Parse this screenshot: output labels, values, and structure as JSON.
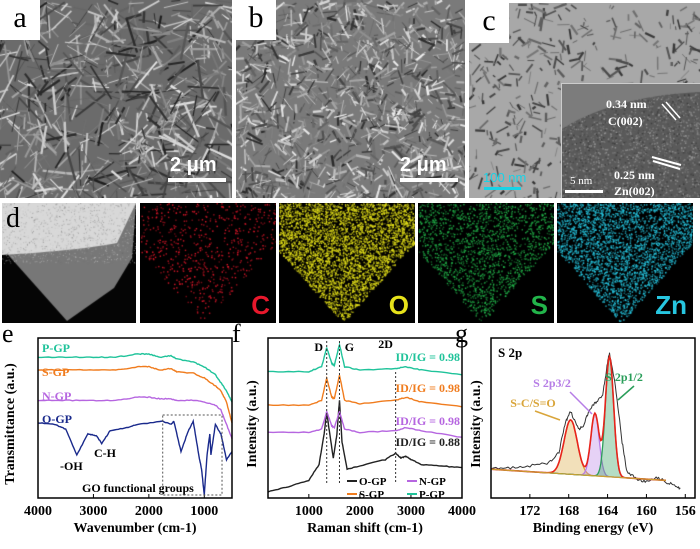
{
  "panels": {
    "a": {
      "letter": "a",
      "scale_bar": "2 μm"
    },
    "b": {
      "letter": "b",
      "scale_bar": "2 μm"
    },
    "c": {
      "letter": "c",
      "scale_bar": "100 nm",
      "inset_scale_bar": "5 nm",
      "annotation_1": "0.34 nm",
      "annotation_1b": "C(002)",
      "annotation_2": "0.25 nm",
      "annotation_2b": "Zn(002)"
    },
    "d": {
      "letter": "d",
      "maps": [
        {
          "element": "C",
          "color": "#e8182c"
        },
        {
          "element": "O",
          "color": "#e6e21a"
        },
        {
          "element": "S",
          "color": "#22b44a"
        },
        {
          "element": "Zn",
          "color": "#27c6e0"
        }
      ]
    }
  },
  "chart_data": [
    {
      "panel": "e",
      "type": "line",
      "xlabel": "Wavenumber (cm-1)",
      "ylabel": "Transmittance (a.u.)",
      "xlim": [
        4000,
        500
      ],
      "xticks": [
        4000,
        3000,
        2000,
        1000
      ],
      "annotations": [
        "-OH",
        "C-H",
        "GO functional groups"
      ],
      "series": [
        {
          "name": "P-GP",
          "color": "#1fc39a",
          "x": [
            4000,
            3500,
            3000,
            2600,
            2200,
            2000,
            1800,
            1600,
            1500,
            1200,
            1000,
            800,
            700,
            600,
            500
          ],
          "y": [
            8.8,
            8.8,
            8.8,
            8.8,
            9.0,
            9.0,
            8.8,
            8.9,
            8.7,
            8.5,
            8.2,
            7.7,
            7.2,
            6.7,
            6.0
          ]
        },
        {
          "name": "S-GP",
          "color": "#f07c1e",
          "x": [
            4000,
            3500,
            3000,
            2600,
            2200,
            2000,
            1800,
            1600,
            1500,
            1200,
            1000,
            800,
            700,
            600,
            500
          ],
          "y": [
            8.0,
            8.0,
            8.0,
            8.0,
            8.2,
            8.2,
            8.0,
            8.1,
            7.9,
            7.8,
            7.5,
            7.0,
            6.7,
            6.0,
            4.7
          ]
        },
        {
          "name": "N-GP",
          "color": "#b666e0",
          "x": [
            4000,
            3500,
            3000,
            2600,
            2200,
            2000,
            1800,
            1600,
            1500,
            1200,
            1000,
            800,
            700,
            600,
            500
          ],
          "y": [
            6.1,
            6.1,
            6.1,
            6.1,
            6.3,
            6.3,
            6.2,
            6.2,
            6.1,
            6.1,
            6.0,
            5.8,
            5.5,
            4.6,
            3.7
          ]
        },
        {
          "name": "O-GP",
          "color": "#1a2a8c",
          "x": [
            4000,
            3700,
            3500,
            3300,
            3100,
            2950,
            2850,
            2700,
            2400,
            2200,
            1750,
            1600,
            1550,
            1420,
            1300,
            1200,
            1100,
            1050,
            1000,
            950,
            900,
            880,
            800,
            700,
            600,
            500
          ],
          "y": [
            4.7,
            4.6,
            4.3,
            2.7,
            4.0,
            3.9,
            3.4,
            4.2,
            4.4,
            4.6,
            4.8,
            4.6,
            4.8,
            2.9,
            4.1,
            4.8,
            2.7,
            1.8,
            0.2,
            2.7,
            4.0,
            2.7,
            4.6,
            4.0,
            2.4,
            2.9
          ]
        }
      ]
    },
    {
      "panel": "f",
      "type": "line",
      "xlabel": "Raman shift (cm-1)",
      "ylabel": "Intensity (a.u.)",
      "xlim": [
        200,
        4000
      ],
      "xticks": [
        1000,
        2000,
        3000,
        4000
      ],
      "peak_labels": [
        "D",
        "G",
        "2D"
      ],
      "legend": "bottom-right",
      "ratios": [
        {
          "text": "ID/IG = 0.98",
          "color": "#1fc39a"
        },
        {
          "text": "ID/IG = 0.98",
          "color": "#f07c1e"
        },
        {
          "text": "ID/IG = 0.98",
          "color": "#b666e0"
        },
        {
          "text": "ID/IG = 0.88",
          "color": "#222222"
        }
      ],
      "series": [
        {
          "name": "O-GP",
          "color": "#222222",
          "x": [
            200,
            600,
            1000,
            1200,
            1300,
            1350,
            1400,
            1480,
            1550,
            1600,
            1650,
            1750,
            2000,
            2500,
            2700,
            2800,
            2900,
            3000,
            3200,
            3600,
            4000
          ],
          "y": [
            0.4,
            0.7,
            1.1,
            2.1,
            4.0,
            5.4,
            4.2,
            2.5,
            4.0,
            6.1,
            3.5,
            1.8,
            2.0,
            2.4,
            2.8,
            2.5,
            2.6,
            2.4,
            2.1,
            2.0,
            1.9
          ]
        },
        {
          "name": "N-GP",
          "color": "#b666e0",
          "x": [
            200,
            1000,
            1250,
            1350,
            1450,
            1500,
            1600,
            1700,
            2000,
            2700,
            2900,
            3200,
            4000
          ],
          "y": [
            4.1,
            4.1,
            4.3,
            5.4,
            4.5,
            4.4,
            5.4,
            4.3,
            4.1,
            4.2,
            4.4,
            4.2,
            3.8
          ]
        },
        {
          "name": "S-GP",
          "color": "#f07c1e",
          "x": [
            200,
            1000,
            1250,
            1350,
            1450,
            1500,
            1600,
            1700,
            2000,
            2700,
            2900,
            3200,
            4000
          ],
          "y": [
            5.8,
            5.8,
            6.1,
            7.5,
            6.3,
            6.2,
            7.7,
            6.1,
            5.9,
            6.1,
            6.3,
            6.0,
            5.7
          ]
        },
        {
          "name": "P-GP",
          "color": "#1fc39a",
          "x": [
            200,
            1000,
            1250,
            1350,
            1450,
            1500,
            1600,
            1700,
            2000,
            2700,
            2900,
            3200,
            4000
          ],
          "y": [
            7.9,
            7.9,
            8.2,
            9.4,
            8.4,
            8.3,
            9.6,
            8.2,
            8.0,
            8.1,
            8.2,
            8.0,
            7.7
          ]
        }
      ]
    },
    {
      "panel": "g",
      "type": "line",
      "title": "S 2p",
      "xlabel": "Binding energy (eV)",
      "ylabel": "Intensity (a.u.)",
      "xlim": [
        176,
        155
      ],
      "xticks": [
        172,
        168,
        164,
        160,
        156
      ],
      "raw": {
        "color": "#333333",
        "x": [
          176,
          174,
          172,
          170,
          169,
          168.3,
          167.8,
          167,
          166.5,
          165.8,
          165.2,
          164.5,
          164,
          163.8,
          163.2,
          162.5,
          162,
          161,
          160,
          159,
          158,
          157,
          156.5
        ],
        "y": [
          1.8,
          1.9,
          2.0,
          2.2,
          2.9,
          4.8,
          5.4,
          4.3,
          4.5,
          5.6,
          6.0,
          6.4,
          8.5,
          9.1,
          7.0,
          3.5,
          1.6,
          1.2,
          1.0,
          1.3,
          1.0,
          0.8,
          0.6
        ]
      },
      "fit_envelope_color": "#e8241c",
      "baseline": {
        "x": [
          176,
          158
        ],
        "y": [
          1.8,
          1.1
        ]
      },
      "components": [
        {
          "label": "S-C/S=O",
          "color": "#d9a53a",
          "center": 167.8,
          "height": 3.4,
          "fwhm": 1.6
        },
        {
          "label": "S 2p3/2",
          "color": "#b67de6",
          "center": 165.3,
          "height": 3.9,
          "fwhm": 1.0
        },
        {
          "label": "S 2p1/2",
          "color": "#2a9e5a",
          "center": 163.8,
          "height": 7.5,
          "fwhm": 1.0
        }
      ]
    }
  ]
}
